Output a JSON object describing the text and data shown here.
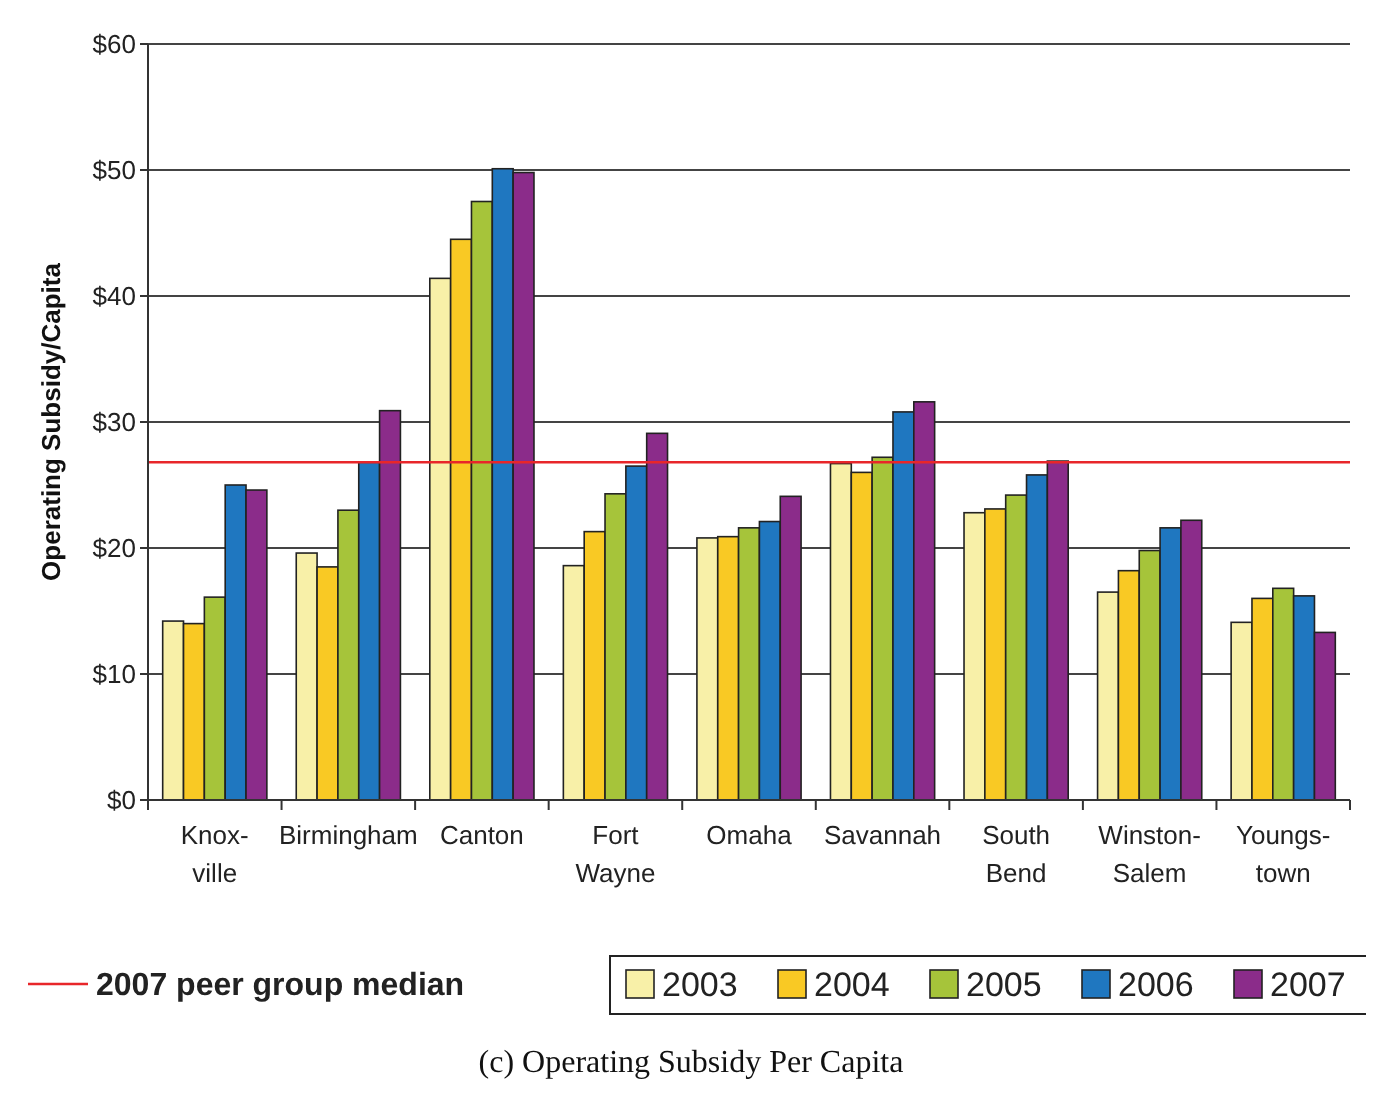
{
  "chart_data": {
    "type": "bar",
    "ylabel": "Operating Subsidy/Capita",
    "categories": [
      "Knox-ville",
      "Birmingham",
      "Canton",
      "Fort Wayne",
      "Omaha",
      "Savannah",
      "South Bend",
      "Winston-Salem",
      "Youngs-town"
    ],
    "series": [
      {
        "name": "2003",
        "color": "#f8f0a8",
        "values": [
          14.2,
          19.6,
          41.4,
          18.6,
          20.8,
          26.7,
          22.8,
          16.5,
          14.1
        ]
      },
      {
        "name": "2004",
        "color": "#f9c924",
        "values": [
          14.0,
          18.5,
          44.5,
          21.3,
          20.9,
          26.0,
          23.1,
          18.2,
          16.0
        ]
      },
      {
        "name": "2005",
        "color": "#a6c43a",
        "values": [
          16.1,
          23.0,
          47.5,
          24.3,
          21.6,
          27.2,
          24.2,
          19.8,
          16.8
        ]
      },
      {
        "name": "2006",
        "color": "#1f77c0",
        "values": [
          25.0,
          26.8,
          50.1,
          26.5,
          22.1,
          30.8,
          25.8,
          21.6,
          16.2
        ]
      },
      {
        "name": "2007",
        "color": "#8b2c8a",
        "values": [
          24.6,
          30.9,
          49.8,
          29.1,
          24.1,
          31.6,
          26.9,
          22.2,
          13.3
        ]
      }
    ],
    "ylim": [
      0,
      60
    ],
    "yticks": [
      {
        "value": 0,
        "label": "$0"
      },
      {
        "value": 10,
        "label": "$10"
      },
      {
        "value": 20,
        "label": "$20"
      },
      {
        "value": 30,
        "label": "$30"
      },
      {
        "value": 40,
        "label": "$40"
      },
      {
        "value": 50,
        "label": "$50"
      },
      {
        "value": 60,
        "label": "$60"
      }
    ],
    "ref_lines": [
      {
        "axis": "y",
        "value": 26.8,
        "label": "2007 peer group median",
        "color": "#e8262a"
      }
    ],
    "grid": "y",
    "legend": "bottom",
    "annotations": [
      "(c) Operating Subsidy Per Capita"
    ]
  }
}
